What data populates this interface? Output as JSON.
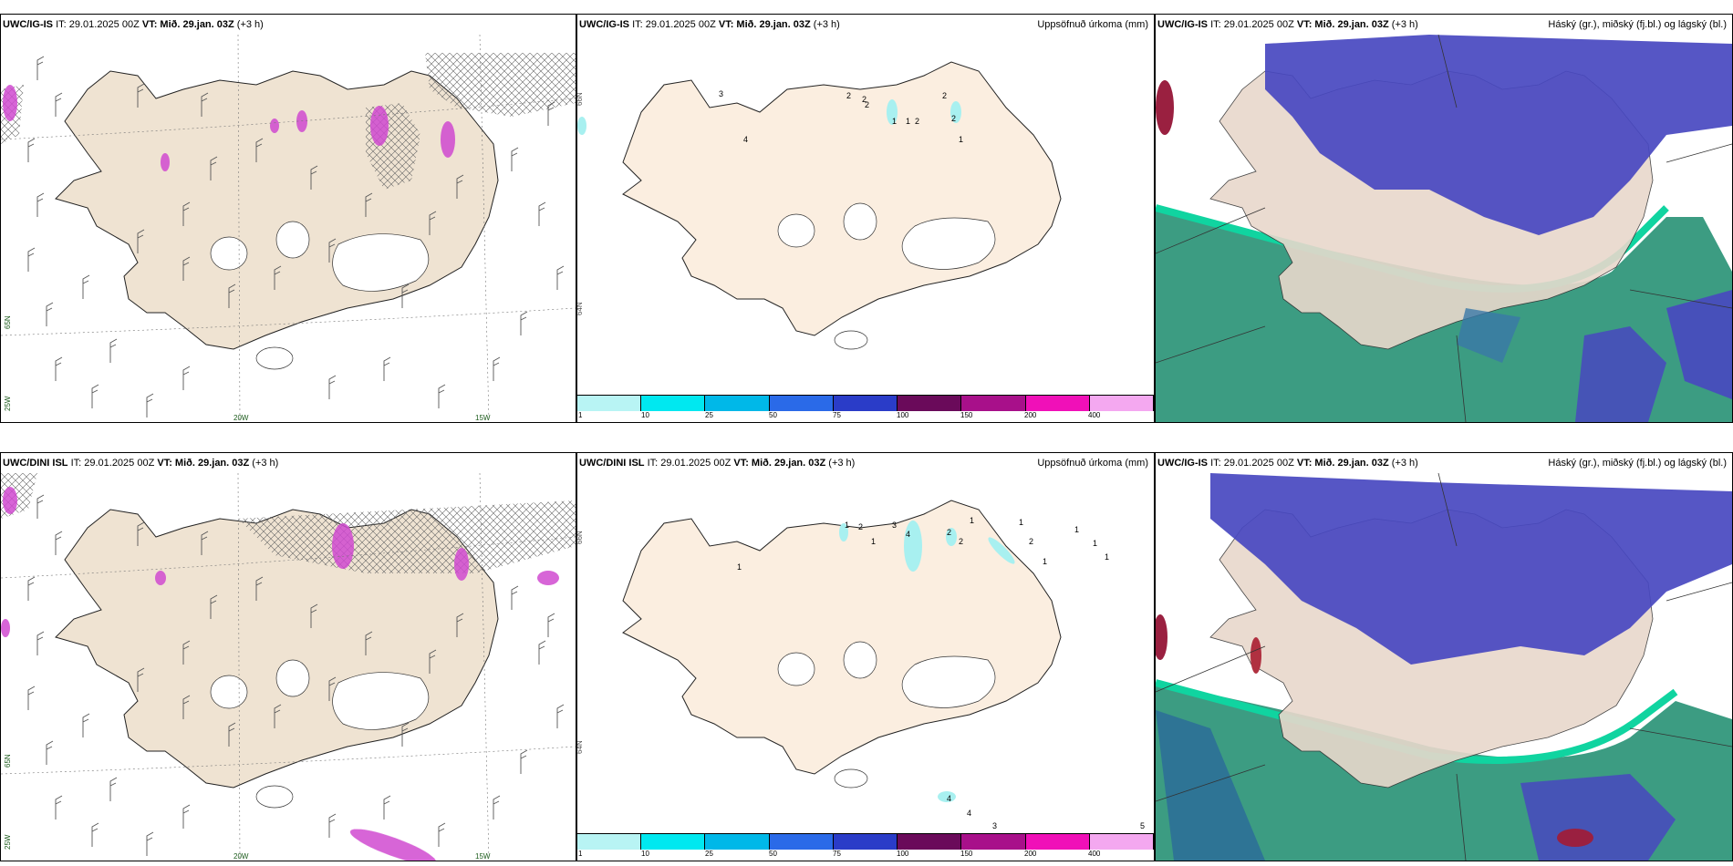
{
  "panels": [
    {
      "id": "p1",
      "model": "UWC/IG-IS",
      "it": "IT: 29.01.2025 00Z",
      "vt": "VT: Mið. 29.jan. 03Z",
      "lead": "(+3 h)",
      "right_title": "",
      "axis": {
        "lon_a": "20W",
        "lon_b": "15W",
        "lat_a": "65N",
        "lat_b": "25W"
      }
    },
    {
      "id": "p2",
      "model": "UWC/IG-IS",
      "it": "IT: 29.01.2025 00Z",
      "vt": "VT: Mið. 29.jan. 03Z",
      "lead": "(+3 h)",
      "right_title": "Uppsöfnuð úrkoma (mm)",
      "axis": {
        "lat_a": "66N",
        "lat_b": "64N"
      }
    },
    {
      "id": "p3",
      "model": "UWC/IG-IS",
      "it": "IT: 29.01.2025 00Z",
      "vt": "VT: Mið. 29.jan. 03Z",
      "lead": "(+3 h)",
      "right_title": "Háský (gr.), miðský (fj.bl.) og lágský (bl.)"
    },
    {
      "id": "p4",
      "model": "UWC/DINI ISL",
      "it": "IT: 29.01.2025 00Z",
      "vt": "VT: Mið. 29.jan. 03Z",
      "lead": "(+3 h)",
      "right_title": "",
      "axis": {
        "lon_a": "20W",
        "lon_b": "15W",
        "lat_a": "65N",
        "lat_b": "25W"
      }
    },
    {
      "id": "p5",
      "model": "UWC/DINI ISL",
      "it": "IT: 29.01.2025 00Z",
      "vt": "VT: Mið. 29.jan. 03Z",
      "lead": "(+3 h)",
      "right_title": "Uppsöfnuð úrkoma (mm)",
      "axis": {
        "lat_a": "66N",
        "lat_b": "64N"
      }
    },
    {
      "id": "p6",
      "model": "UWC/IG-IS",
      "it": "IT: 29.01.2025 00Z",
      "vt": "VT: Mið. 29.jan. 03Z",
      "lead": "(+3 h)",
      "right_title": "Háský (gr.), miðský (fj.bl.) og lágský (bl.)"
    }
  ],
  "colorbar": {
    "ticks": [
      "1",
      "10",
      "25",
      "50",
      "75",
      "100",
      "150",
      "200",
      "400"
    ],
    "colors": [
      "#b8f4f4",
      "#00e8f0",
      "#00b8e8",
      "#2a6ae8",
      "#2a3cc8",
      "#6a0a5a",
      "#a8108a",
      "#f010b8",
      "#f4a8f0"
    ]
  },
  "precip_labels_top": [
    "3",
    "2",
    "4",
    "2",
    "2",
    "1",
    "1",
    "2",
    "2",
    "2",
    "1"
  ],
  "precip_labels_bottom": [
    "1",
    "2",
    "3",
    "4",
    "1",
    "2",
    "2",
    "1",
    "1",
    "2",
    "1",
    "1",
    "1",
    "1",
    "1",
    "4",
    "4",
    "3",
    "5"
  ],
  "colors": {
    "land": "#f4e8d8",
    "land_pale": "#fbeee0",
    "cloud_high": "#3c8c78",
    "cloud_mid": "#4a4ac0",
    "cloud_low": "#0ac890"
  }
}
